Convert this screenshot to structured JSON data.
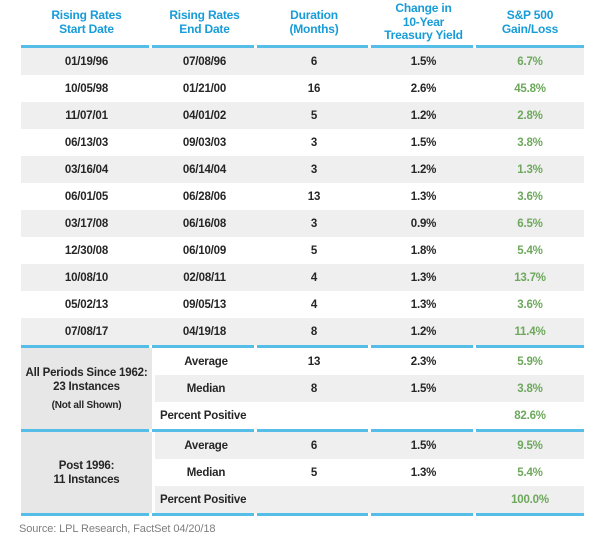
{
  "header": {
    "cols": [
      {
        "lines": [
          "Rising Rates",
          "Start Date"
        ]
      },
      {
        "lines": [
          "Rising Rates",
          "End Date"
        ]
      },
      {
        "lines": [
          "Duration",
          "(Months)"
        ]
      },
      {
        "lines": [
          "Change in",
          "10-Year",
          "Treasury Yield"
        ]
      },
      {
        "lines": [
          "S&P 500",
          "Gain/Loss"
        ]
      }
    ]
  },
  "rows": [
    {
      "start": "01/19/96",
      "end": "07/08/96",
      "duration": "6",
      "change": "1.5%",
      "gain": "6.7%"
    },
    {
      "start": "10/05/98",
      "end": "01/21/00",
      "duration": "16",
      "change": "2.6%",
      "gain": "45.8%"
    },
    {
      "start": "11/07/01",
      "end": "04/01/02",
      "duration": "5",
      "change": "1.2%",
      "gain": "2.8%"
    },
    {
      "start": "06/13/03",
      "end": "09/03/03",
      "duration": "3",
      "change": "1.5%",
      "gain": "3.8%"
    },
    {
      "start": "03/16/04",
      "end": "06/14/04",
      "duration": "3",
      "change": "1.2%",
      "gain": "1.3%"
    },
    {
      "start": "06/01/05",
      "end": "06/28/06",
      "duration": "13",
      "change": "1.3%",
      "gain": "3.6%"
    },
    {
      "start": "03/17/08",
      "end": "06/16/08",
      "duration": "3",
      "change": "0.9%",
      "gain": "6.5%"
    },
    {
      "start": "12/30/08",
      "end": "06/10/09",
      "duration": "5",
      "change": "1.8%",
      "gain": "5.4%"
    },
    {
      "start": "10/08/10",
      "end": "02/08/11",
      "duration": "4",
      "change": "1.3%",
      "gain": "13.7%"
    },
    {
      "start": "05/02/13",
      "end": "09/05/13",
      "duration": "4",
      "change": "1.3%",
      "gain": "3.6%"
    },
    {
      "start": "07/08/17",
      "end": "04/19/18",
      "duration": "8",
      "change": "1.2%",
      "gain": "11.4%"
    }
  ],
  "sections": [
    {
      "label_lines": [
        "All Periods Since 1962:",
        "23 Instances"
      ],
      "note": "(Not all Shown)",
      "rows": [
        {
          "label": "Average",
          "duration": "13",
          "change": "2.3%",
          "gain": "5.9%"
        },
        {
          "label": "Median",
          "duration": "8",
          "change": "1.5%",
          "gain": "3.8%"
        },
        {
          "label": "Percent Positive",
          "duration": "",
          "change": "",
          "gain": "82.6%"
        }
      ]
    },
    {
      "label_lines": [
        "Post 1996:",
        "11 Instances"
      ],
      "note": "",
      "rows": [
        {
          "label": "Average",
          "duration": "6",
          "change": "1.5%",
          "gain": "9.5%"
        },
        {
          "label": "Median",
          "duration": "5",
          "change": "1.3%",
          "gain": "5.4%"
        },
        {
          "label": "Percent Positive",
          "duration": "",
          "change": "",
          "gain": "100.0%"
        }
      ]
    }
  ],
  "source": "Source: LPL Research, FactSet  04/20/18",
  "colors": {
    "header_blue": "#189CD8",
    "separator_blue": "#56BDE8",
    "positive_green": "#6DA85C",
    "row_stripe": "#EFEFEF",
    "section_cell_grey": "#E7E7E7",
    "text_dark": "#262626",
    "source_grey": "#7E7E7E"
  },
  "chart_data": {
    "type": "table",
    "title": "",
    "columns": [
      "Rising Rates Start Date",
      "Rising Rates End Date",
      "Duration (Months)",
      "Change in 10-Year Treasury Yield",
      "S&P 500 Gain/Loss"
    ],
    "rows": [
      [
        "01/19/96",
        "07/08/96",
        6,
        "1.5%",
        "6.7%"
      ],
      [
        "10/05/98",
        "01/21/00",
        16,
        "2.6%",
        "45.8%"
      ],
      [
        "11/07/01",
        "04/01/02",
        5,
        "1.2%",
        "2.8%"
      ],
      [
        "06/13/03",
        "09/03/03",
        3,
        "1.5%",
        "3.8%"
      ],
      [
        "03/16/04",
        "06/14/04",
        3,
        "1.2%",
        "1.3%"
      ],
      [
        "06/01/05",
        "06/28/06",
        13,
        "1.3%",
        "3.6%"
      ],
      [
        "03/17/08",
        "06/16/08",
        3,
        "0.9%",
        "6.5%"
      ],
      [
        "12/30/08",
        "06/10/09",
        5,
        "1.8%",
        "5.4%"
      ],
      [
        "10/08/10",
        "02/08/11",
        4,
        "1.3%",
        "13.7%"
      ],
      [
        "05/02/13",
        "09/05/13",
        4,
        "1.3%",
        "3.6%"
      ],
      [
        "07/08/17",
        "04/19/18",
        8,
        "1.2%",
        "11.4%"
      ]
    ],
    "summary_sections": [
      {
        "group": "All Periods Since 1962: 23 Instances (Not all Shown)",
        "stats": [
          [
            "Average",
            13,
            "2.3%",
            "5.9%"
          ],
          [
            "Median",
            8,
            "1.5%",
            "3.8%"
          ],
          [
            "Percent Positive",
            null,
            null,
            "82.6%"
          ]
        ]
      },
      {
        "group": "Post 1996: 11 Instances",
        "stats": [
          [
            "Average",
            6,
            "1.5%",
            "9.5%"
          ],
          [
            "Median",
            5,
            "1.3%",
            "5.4%"
          ],
          [
            "Percent Positive",
            null,
            null,
            "100.0%"
          ]
        ]
      }
    ],
    "source_note": "Source: LPL Research, FactSet  04/20/18"
  }
}
